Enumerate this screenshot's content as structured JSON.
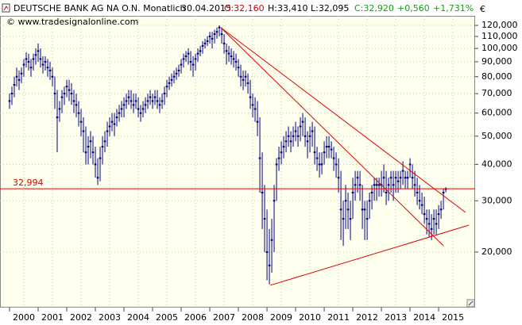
{
  "chart_data": {
    "type": "candlestick",
    "header": {
      "title": "DEUTSCHE BANK AG NA O.N. Monatlich",
      "date": "30.04.2015",
      "open": "O:32,160",
      "high": "H:33,410",
      "low": "L:32,095",
      "close": "C:32,920",
      "change": "+0,560",
      "change_pct": "+1,731%"
    },
    "copyright": "© www.tradesignalonline.com",
    "currency": "€",
    "log_scale": true,
    "grid": true,
    "color": "#000080",
    "ylim": [
      12.9,
      129.4
    ],
    "yticks": [
      {
        "value": 20,
        "label": "20,000"
      },
      {
        "value": 30,
        "label": "30,000"
      },
      {
        "value": 40,
        "label": "40,000"
      },
      {
        "value": 50,
        "label": "50,000"
      },
      {
        "value": 60,
        "label": "60,000"
      },
      {
        "value": 70,
        "label": "70,000"
      },
      {
        "value": 80,
        "label": "80,000"
      },
      {
        "value": 90,
        "label": "90,000"
      },
      {
        "value": 100,
        "label": "100,000"
      },
      {
        "value": 110,
        "label": "110,000"
      },
      {
        "value": 120,
        "label": "120,000"
      }
    ],
    "xlim": [
      -4,
      195.3
    ],
    "xticks": [
      {
        "value": 6,
        "label": "2000"
      },
      {
        "value": 18,
        "label": "2001"
      },
      {
        "value": 30,
        "label": "2002"
      },
      {
        "value": 42,
        "label": "2003"
      },
      {
        "value": 54,
        "label": "2004"
      },
      {
        "value": 66,
        "label": "2005"
      },
      {
        "value": 78,
        "label": "2006"
      },
      {
        "value": 90,
        "label": "2007"
      },
      {
        "value": 102,
        "label": "2008"
      },
      {
        "value": 114,
        "label": "2009"
      },
      {
        "value": 126,
        "label": "2010"
      },
      {
        "value": 138,
        "label": "2011"
      },
      {
        "value": 150,
        "label": "2012"
      },
      {
        "value": 162,
        "label": "2013"
      },
      {
        "value": 174,
        "label": "2014"
      },
      {
        "value": 186,
        "label": "2015"
      }
    ],
    "high": [
      70,
      74,
      80,
      86,
      84,
      86,
      92,
      97,
      96,
      92,
      96,
      100,
      104,
      100,
      94,
      94,
      92,
      90,
      86,
      80,
      72,
      66,
      72,
      74,
      78,
      78,
      76,
      72,
      70,
      66,
      62,
      58,
      54,
      50,
      52,
      50,
      46,
      42,
      46,
      50,
      52,
      56,
      58,
      60,
      60,
      62,
      64,
      66,
      68,
      70,
      72,
      72,
      70,
      70,
      68,
      64,
      66,
      68,
      70,
      72,
      70,
      72,
      72,
      68,
      70,
      74,
      78,
      80,
      82,
      84,
      86,
      88,
      92,
      96,
      98,
      100,
      98,
      94,
      96,
      100,
      102,
      106,
      108,
      110,
      114,
      114,
      116,
      118,
      120,
      118,
      112,
      104,
      102,
      100,
      98,
      96,
      92,
      88,
      84,
      84,
      82,
      78,
      70,
      68,
      66,
      58,
      44,
      34,
      28,
      24,
      26,
      34,
      42,
      46,
      48,
      50,
      52,
      54,
      52,
      54,
      56,
      54,
      58,
      60,
      58,
      52,
      54,
      56,
      54,
      46,
      44,
      44,
      48,
      50,
      50,
      48,
      46,
      44,
      42,
      38,
      30,
      34,
      32,
      30,
      36,
      38,
      38,
      38,
      34,
      30,
      30,
      32,
      34,
      36,
      36,
      36,
      38,
      40,
      38,
      36,
      38,
      38,
      38,
      38,
      38,
      41,
      38,
      38,
      42,
      40,
      38,
      36,
      34,
      32,
      31,
      28,
      28,
      27,
      28,
      28,
      29,
      30,
      33,
      33.41
    ],
    "low": [
      62,
      64,
      68,
      74,
      72,
      76,
      80,
      86,
      84,
      80,
      84,
      88,
      90,
      86,
      82,
      84,
      80,
      78,
      74,
      62,
      44,
      56,
      60,
      64,
      68,
      66,
      64,
      60,
      58,
      54,
      50,
      44,
      40,
      40,
      42,
      40,
      36,
      34,
      35,
      40,
      44,
      46,
      50,
      52,
      50,
      54,
      56,
      58,
      58,
      62,
      64,
      62,
      60,
      62,
      58,
      56,
      58,
      60,
      62,
      64,
      62,
      64,
      62,
      60,
      62,
      64,
      68,
      72,
      74,
      76,
      78,
      80,
      82,
      86,
      90,
      88,
      84,
      80,
      84,
      90,
      94,
      96,
      100,
      102,
      104,
      100,
      104,
      108,
      110,
      104,
      96,
      88,
      90,
      88,
      86,
      84,
      80,
      74,
      72,
      74,
      70,
      62,
      58,
      56,
      50,
      32,
      24,
      20,
      16,
      15.5,
      17,
      20,
      30,
      38,
      40,
      42,
      44,
      46,
      44,
      46,
      48,
      46,
      48,
      50,
      46,
      42,
      44,
      46,
      40,
      38,
      36,
      37,
      40,
      42,
      42,
      42,
      38,
      36,
      32,
      22,
      21,
      24,
      24,
      22,
      26,
      30,
      32,
      30,
      24,
      22,
      22,
      26,
      28,
      30,
      30,
      31,
      31,
      32,
      29,
      30,
      32,
      30,
      32,
      32,
      33,
      34,
      33,
      33,
      36,
      33,
      31,
      29,
      28,
      27,
      25,
      23,
      22.5,
      22,
      23,
      23,
      24,
      26,
      28,
      32.095
    ],
    "close": [
      66,
      70,
      75,
      80,
      78,
      82,
      88,
      92,
      90,
      86,
      92,
      95,
      98,
      92,
      88,
      90,
      86,
      84,
      80,
      70,
      58,
      62,
      68,
      70,
      74,
      72,
      70,
      66,
      64,
      60,
      56,
      52,
      44,
      46,
      48,
      44,
      40,
      36,
      42,
      46,
      48,
      52,
      54,
      56,
      55,
      58,
      60,
      62,
      64,
      66,
      68,
      66,
      64,
      66,
      62,
      60,
      62,
      64,
      66,
      68,
      66,
      68,
      66,
      64,
      66,
      70,
      74,
      76,
      78,
      80,
      82,
      84,
      88,
      92,
      94,
      96,
      90,
      88,
      92,
      96,
      98,
      102,
      104,
      106,
      110,
      108,
      112,
      114,
      118,
      112,
      104,
      98,
      96,
      94,
      92,
      90,
      86,
      80,
      78,
      80,
      76,
      68,
      64,
      62,
      56,
      42,
      32,
      26,
      20,
      18,
      22,
      30,
      40,
      42,
      44,
      46,
      48,
      50,
      48,
      50,
      52,
      50,
      54,
      56,
      50,
      48,
      50,
      52,
      44,
      42,
      40,
      40,
      44,
      46,
      46,
      45,
      42,
      40,
      36,
      28,
      26,
      30,
      28,
      26,
      32,
      34,
      36,
      34,
      28,
      28,
      26,
      30,
      32,
      34,
      34,
      34,
      34,
      36,
      32,
      34,
      36,
      34,
      36,
      35,
      36,
      38,
      36,
      36,
      40,
      36,
      34,
      32,
      30,
      29,
      27,
      26,
      25,
      24,
      26,
      25,
      27,
      28,
      32,
      32.92
    ],
    "reference_line": {
      "value": 32.994,
      "label": "32,994",
      "color": "#e00000"
    },
    "trendlines": {
      "color": "#e00000",
      "lines": [
        {
          "x": [
            88.7,
            191.3
          ],
          "y": [
            117.8,
            27.36
          ]
        },
        {
          "x": [
            88.7,
            182
          ],
          "y": [
            117.8,
            21.03
          ]
        },
        {
          "x": [
            109.3,
            192.7
          ],
          "y": [
            15.38,
            24.75
          ]
        }
      ]
    }
  }
}
